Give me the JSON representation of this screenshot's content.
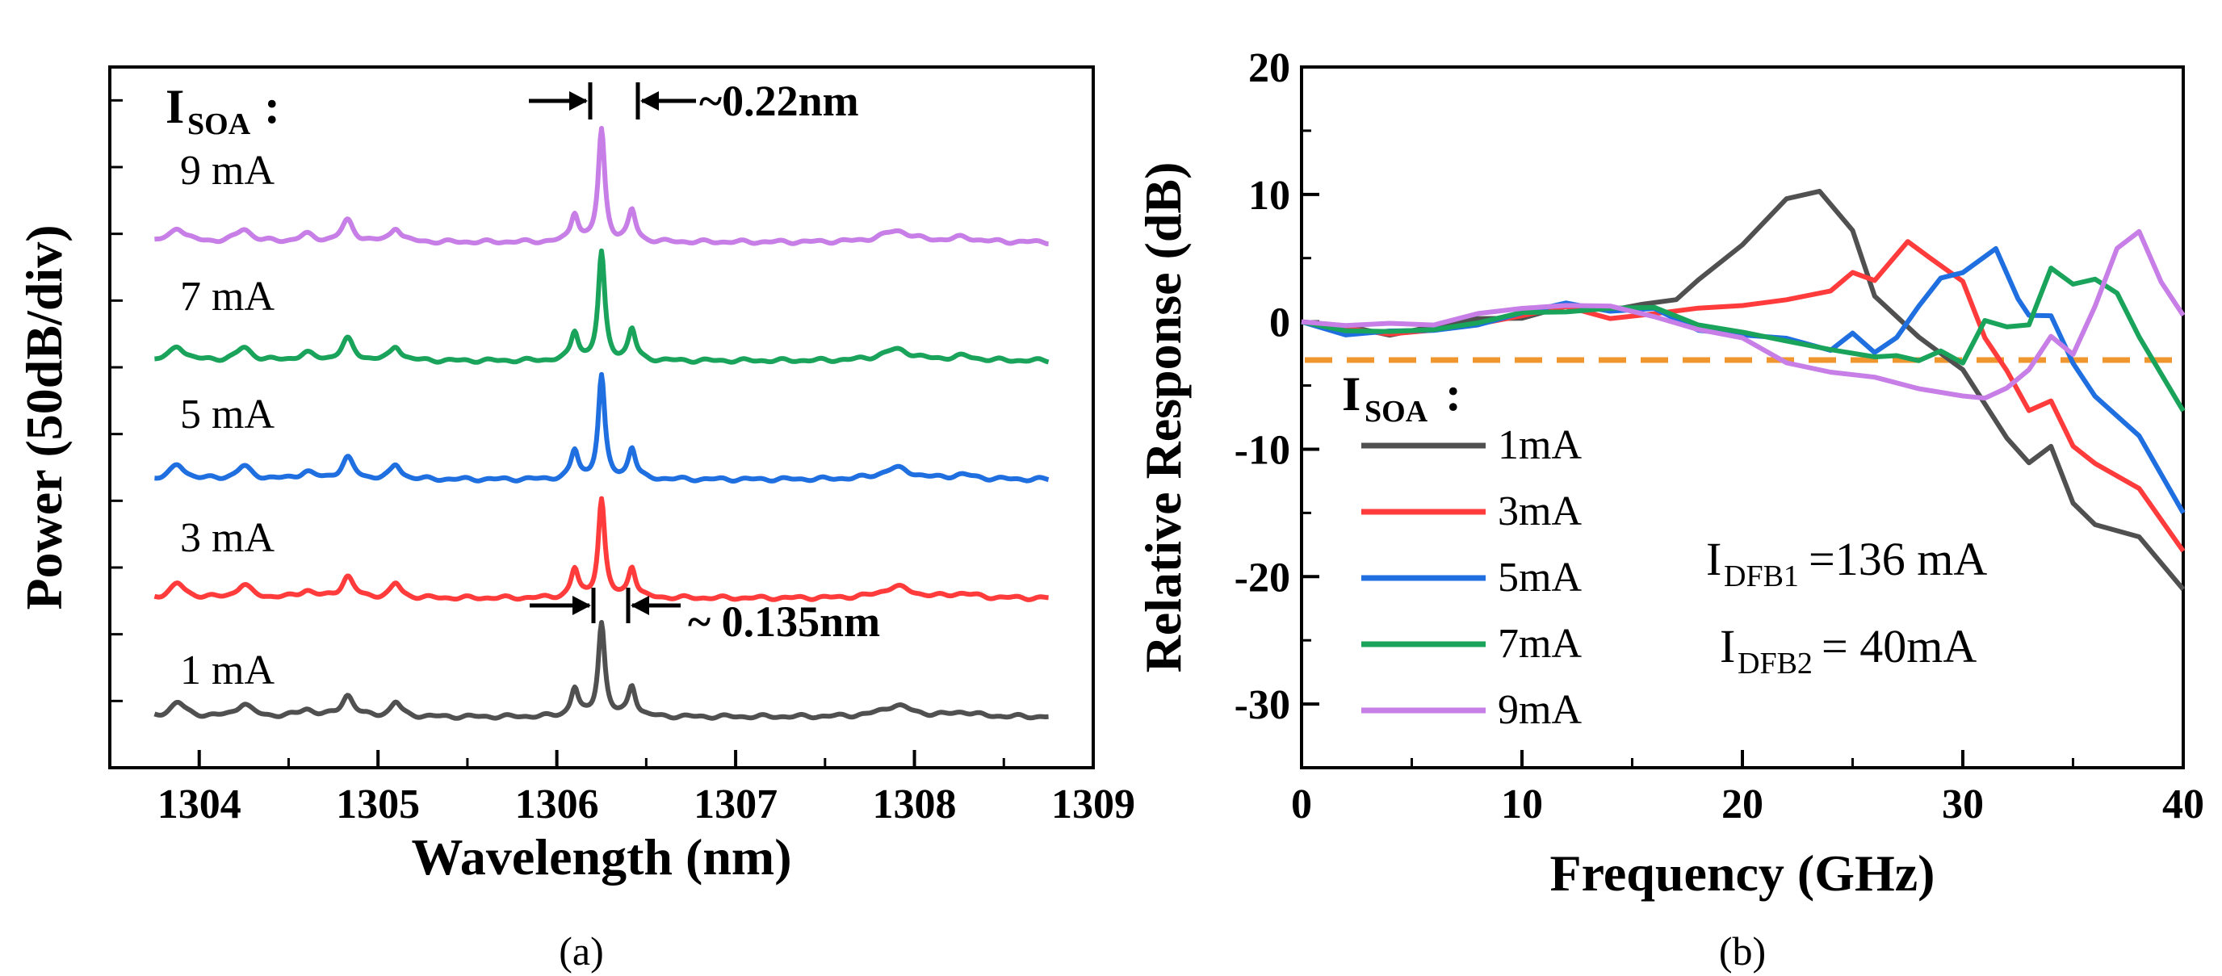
{
  "chart_data": [
    {
      "panel_label": "(a)",
      "type": "line",
      "title": "",
      "xlabel": "Wavelength (nm)",
      "ylabel": "Power (50dB/div)",
      "xlim": [
        1303.5,
        1309
      ],
      "xticks": [
        "1304",
        "1305",
        "1306",
        "1307",
        "1308",
        "1309"
      ],
      "legend_title_main": "I",
      "legend_title_sub": "SOA",
      "legend_title_colon": " :",
      "series": [
        {
          "name": "1 mA",
          "color": "#505050",
          "offset": 0
        },
        {
          "name": "3 mA",
          "color": "#ff3b3b",
          "offset": 1
        },
        {
          "name": "5 mA",
          "color": "#1f6fe0",
          "offset": 2
        },
        {
          "name": "7 mA",
          "color": "#1aa35a",
          "offset": 3
        },
        {
          "name": "9 mA",
          "color": "#c77ee6",
          "offset": 4
        }
      ],
      "spectrum_profile": {
        "x_range": [
          1303.75,
          1308.75
        ],
        "baseline": 0,
        "peaks": [
          {
            "x": 1303.88,
            "h": 0.1,
            "w": 0.05
          },
          {
            "x": 1304.25,
            "h": 0.09,
            "w": 0.05
          },
          {
            "x": 1304.6,
            "h": 0.05,
            "w": 0.05
          },
          {
            "x": 1304.83,
            "h": 0.15,
            "w": 0.04
          },
          {
            "x": 1305.1,
            "h": 0.1,
            "w": 0.035
          },
          {
            "x": 1306.1,
            "h": 0.2,
            "w": 0.025
          },
          {
            "x": 1306.25,
            "h": 0.78,
            "w": 0.022
          },
          {
            "x": 1306.42,
            "h": 0.22,
            "w": 0.025
          },
          {
            "x": 1307.9,
            "h": 0.08,
            "w": 0.1
          },
          {
            "x": 1308.27,
            "h": 0.03,
            "w": 0.08
          }
        ]
      },
      "annotations": [
        {
          "text": "~0.22nm"
        },
        {
          "text": "~ 0.135nm"
        }
      ]
    },
    {
      "panel_label": "(b)",
      "type": "line",
      "title": "",
      "xlabel": "Frequency (GHz)",
      "ylabel": "Relative Response (dB)",
      "xlim": [
        0,
        40
      ],
      "ylim": [
        -35,
        20
      ],
      "xticks": [
        "0",
        "10",
        "20",
        "30",
        "40"
      ],
      "yticks": [
        "20",
        "10",
        "0",
        "-10",
        "-20",
        "-30"
      ],
      "reference_line": {
        "y": -3,
        "color": "#f0962e",
        "style": "dashed"
      },
      "legend_title_main": "I",
      "legend_title_sub": "SOA",
      "legend_title_colon": " :",
      "series": [
        {
          "name": "1mA",
          "color": "#505050",
          "x": [
            0,
            2,
            4,
            6,
            8,
            10,
            12,
            14,
            15.5,
            17,
            18,
            20,
            22,
            23.5,
            25,
            26,
            28,
            30,
            32,
            33,
            34,
            35,
            36,
            38,
            40
          ],
          "y": [
            0,
            -0.5,
            -0.8,
            -0.5,
            0.2,
            0.5,
            1,
            1,
            1.5,
            1.5,
            3.5,
            6,
            9.5,
            10.5,
            7,
            2,
            -1,
            -4,
            -9,
            -11,
            -10,
            -14,
            -16,
            -17,
            -21
          ]
        },
        {
          "name": "3mA",
          "color": "#ff3b3b",
          "x": [
            0,
            2,
            4,
            6,
            8,
            10,
            12,
            14,
            16,
            18,
            20,
            22,
            24,
            25,
            26,
            27.5,
            28.5,
            30,
            31,
            32,
            33,
            34,
            35,
            36,
            38,
            40
          ],
          "y": [
            0,
            -0.5,
            -0.8,
            -0.9,
            0,
            0.5,
            1,
            0.5,
            0.5,
            1,
            1.5,
            1.5,
            2.5,
            4,
            3,
            6.5,
            5,
            3,
            -1,
            -4,
            -7,
            -6,
            -10,
            -11,
            -13,
            -18
          ]
        },
        {
          "name": "5mA",
          "color": "#1f6fe0",
          "x": [
            0,
            2,
            4,
            6,
            8,
            10,
            12,
            14,
            16,
            18,
            20,
            22,
            24,
            25,
            26,
            27,
            28,
            29,
            30,
            31.5,
            32.5,
            33,
            34,
            35,
            36,
            38,
            40
          ],
          "y": [
            0,
            -0.8,
            -0.8,
            -0.8,
            0,
            0.5,
            1.5,
            1,
            0.8,
            -0.5,
            -1,
            -1.5,
            -2,
            -1,
            -2.5,
            -1,
            1,
            3.5,
            4,
            5.5,
            2,
            0.5,
            0.3,
            -3,
            -6,
            -9,
            -15
          ]
        },
        {
          "name": "7mA",
          "color": "#1aa35a",
          "x": [
            0,
            2,
            4,
            6,
            8,
            10,
            12,
            14,
            16,
            18,
            20,
            22,
            24,
            26,
            27,
            28,
            29,
            30,
            31,
            32,
            33,
            34,
            35,
            36,
            37,
            38,
            40
          ],
          "y": [
            0,
            -0.5,
            -1,
            -0.5,
            0,
            0.5,
            1,
            1,
            1,
            0,
            -1,
            -1.5,
            -2,
            -3,
            -2.5,
            -3,
            -2.5,
            -3,
            0,
            -0.5,
            0,
            4,
            3,
            3.5,
            2,
            -1,
            -7
          ]
        },
        {
          "name": "9mA",
          "color": "#c77ee6",
          "x": [
            0,
            2,
            4,
            6,
            8,
            10,
            12,
            14,
            16,
            18,
            20,
            22,
            24,
            26,
            28,
            30,
            31,
            32,
            33,
            34,
            35,
            36,
            37,
            38,
            39,
            40
          ],
          "y": [
            0,
            -0.3,
            -0.3,
            0,
            0.5,
            1,
            1.5,
            1,
            0.5,
            -0.5,
            -1.5,
            -3,
            -4,
            -4.5,
            -5,
            -6,
            -6,
            -5,
            -4,
            -1,
            -2.5,
            1,
            6,
            7,
            3,
            0.5
          ]
        }
      ],
      "annotations": [
        {
          "main": "I",
          "sub": "DFB1",
          "rest": "=136 mA"
        },
        {
          "main": "I",
          "sub": "DFB2",
          "rest": "= 40mA"
        }
      ]
    }
  ]
}
